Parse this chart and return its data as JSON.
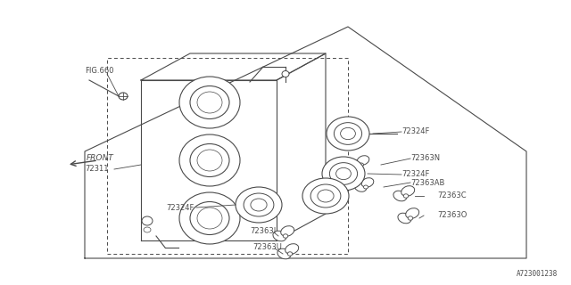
{
  "bg_color": "#ffffff",
  "line_color": "#4a4a4a",
  "text_color": "#4a4a4a",
  "fig_label": "A723001238",
  "front_label": "FRONT",
  "fig660_label": "FIG.660",
  "label_fontsize": 6.0
}
